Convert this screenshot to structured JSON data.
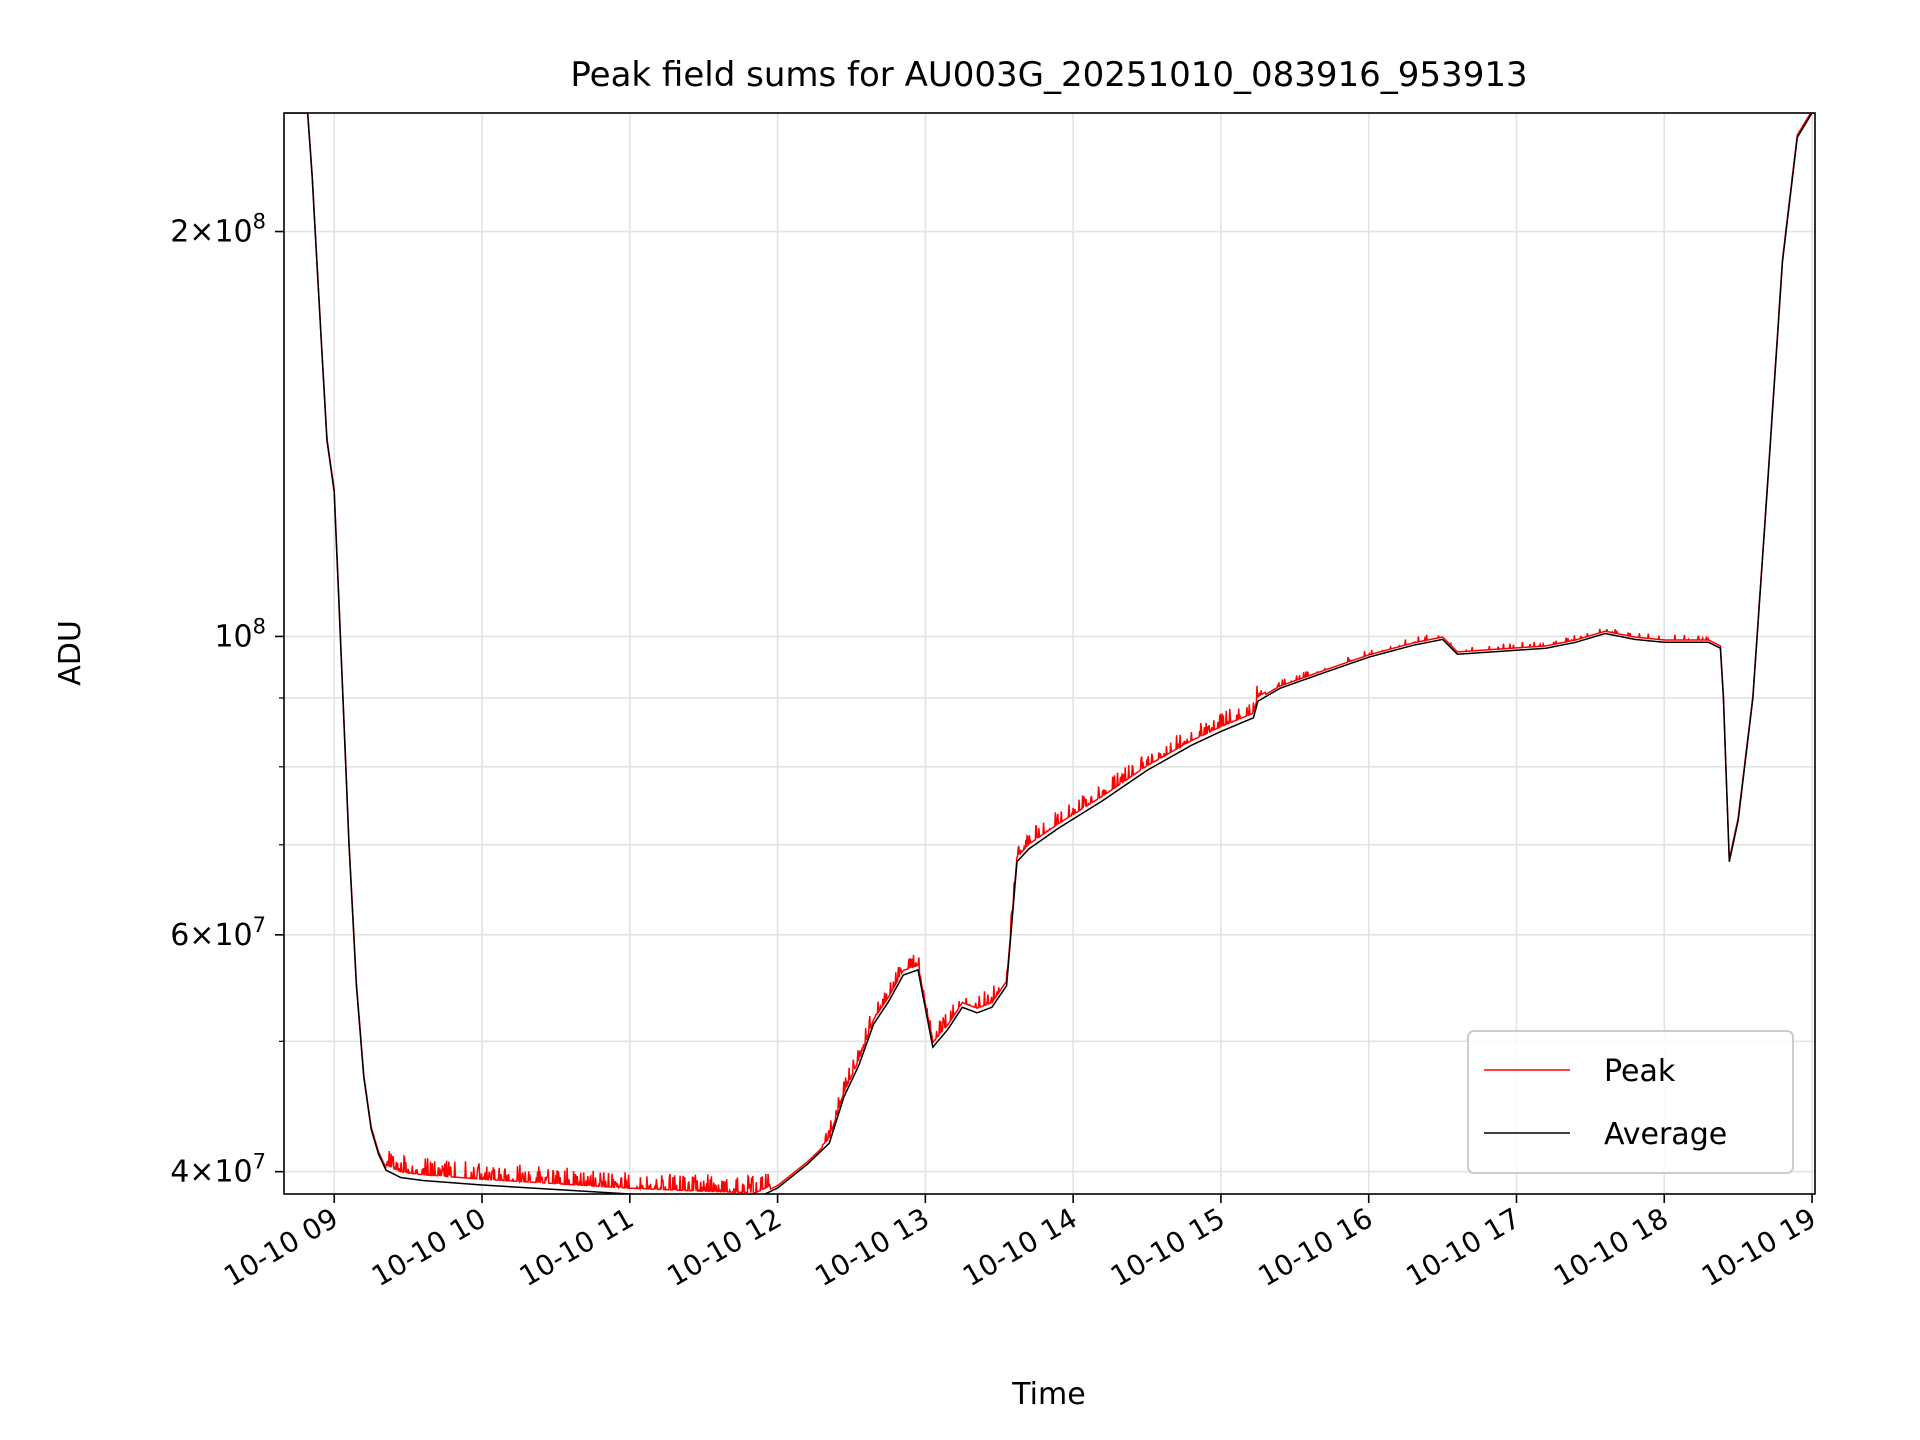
{
  "chart_data": {
    "type": "line",
    "title": "Peak field sums for AU003G_20251010_083916_953913",
    "xlabel": "Time",
    "ylabel": "ADU",
    "yscale": "log",
    "ylim": [
      38500000,
      245000000
    ],
    "xlim_hours": [
      8.66,
      19.02
    ],
    "grid": true,
    "legend_position": "lower right",
    "x_ticks": [
      {
        "hour": 9,
        "label": "10-10 09"
      },
      {
        "hour": 10,
        "label": "10-10 10"
      },
      {
        "hour": 11,
        "label": "10-10 11"
      },
      {
        "hour": 12,
        "label": "10-10 12"
      },
      {
        "hour": 13,
        "label": "10-10 13"
      },
      {
        "hour": 14,
        "label": "10-10 14"
      },
      {
        "hour": 15,
        "label": "10-10 15"
      },
      {
        "hour": 16,
        "label": "10-10 16"
      },
      {
        "hour": 17,
        "label": "10-10 17"
      },
      {
        "hour": 18,
        "label": "10-10 18"
      },
      {
        "hour": 19,
        "label": "10-10 19"
      }
    ],
    "y_major_ticks": [
      {
        "value": 40000000,
        "mant": "4",
        "exp": "7"
      },
      {
        "value": 60000000,
        "mant": "6",
        "exp": "7"
      },
      {
        "value": 100000000,
        "mant": "",
        "exp": "8"
      },
      {
        "value": 200000000,
        "mant": "2",
        "exp": "8"
      }
    ],
    "y_minor_ticks": [
      50000000,
      70000000,
      80000000,
      90000000
    ],
    "series": [
      {
        "name": "Average",
        "color": "#000000",
        "x_hours": [
          8.66,
          8.82,
          8.85,
          8.9,
          8.95,
          9.0,
          9.05,
          9.1,
          9.15,
          9.2,
          9.25,
          9.3,
          9.35,
          9.45,
          9.6,
          10.0,
          10.5,
          11.0,
          11.5,
          11.85,
          12.0,
          12.2,
          12.35,
          12.45,
          12.55,
          12.65,
          12.75,
          12.85,
          12.95,
          13.05,
          13.15,
          13.25,
          13.35,
          13.45,
          13.55,
          13.62,
          13.7,
          13.9,
          14.2,
          14.5,
          14.8,
          15.0,
          15.22,
          15.25,
          15.4,
          15.7,
          16.0,
          16.3,
          16.5,
          16.6,
          16.9,
          17.2,
          17.4,
          17.6,
          17.8,
          18.0,
          18.3,
          18.38,
          18.4,
          18.44,
          18.5,
          18.6,
          18.7,
          18.8,
          18.9,
          19.0,
          19.02
        ],
        "y": [
          245000000,
          245000000,
          220000000,
          175000000,
          140000000,
          128000000,
          95000000,
          70000000,
          55000000,
          47000000,
          43000000,
          41200000,
          40100000,
          39600000,
          39400000,
          39100000,
          38800000,
          38500000,
          38300000,
          38200000,
          38900000,
          40500000,
          42000000,
          45500000,
          48000000,
          51500000,
          53500000,
          56000000,
          56500000,
          49500000,
          51000000,
          53000000,
          52500000,
          53000000,
          55000000,
          68000000,
          69500000,
          72000000,
          75500000,
          79500000,
          83000000,
          85000000,
          87000000,
          89500000,
          91500000,
          94000000,
          96500000,
          98500000,
          99500000,
          97000000,
          97500000,
          98000000,
          99000000,
          100500000,
          99500000,
          99000000,
          99000000,
          98000000,
          90000000,
          68000000,
          73000000,
          90000000,
          130000000,
          190000000,
          235000000,
          245000000,
          245000000
        ]
      },
      {
        "name": "Peak",
        "color": "#ff0000"
      }
    ]
  }
}
